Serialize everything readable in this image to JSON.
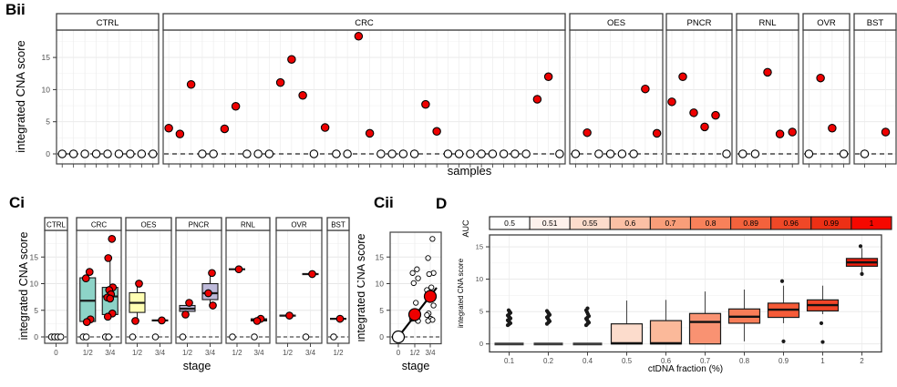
{
  "labels": {
    "bii": "Bii",
    "ci": "Ci",
    "cii": "Cii",
    "d": "D"
  },
  "colors": {
    "tumor_point": "#ee0000",
    "control_point_fill": "#ffffff",
    "point_stroke": "#000000",
    "panel_border": "#3f3f3f",
    "grid_major": "#e7e7e7",
    "grid_minor": "#f3f3f3",
    "zero_line": "#222222",
    "box_stroke": "#1a1a1a",
    "whisker": "#4a4a4a",
    "outlier": "#1a1a1a",
    "flat_line": "#3c3c3c"
  },
  "chart_data": [
    {
      "id": "bii",
      "type": "scatter",
      "ylabel": "integrated CNA score",
      "xlabel": "samples",
      "yticks": [
        0,
        5,
        10,
        15
      ],
      "ylim": [
        -1.6,
        19.5
      ],
      "zero_line": "dashed",
      "point_rule": "value 0 = open white circle (ctDNA negative), value > 0 = red filled circle (integrated CNA score)",
      "facets": [
        {
          "label": "CTRL",
          "values": [
            0,
            0,
            0,
            0,
            0,
            0,
            0,
            0,
            0
          ]
        },
        {
          "label": "CRC",
          "values": [
            4.0,
            3.1,
            10.8,
            0,
            0,
            3.9,
            7.4,
            0,
            0,
            0,
            11.1,
            14.7,
            9.1,
            0,
            4.1,
            0,
            0,
            18.3,
            3.2,
            0,
            0,
            0,
            0,
            7.7,
            3.5,
            0,
            0,
            0,
            0,
            0,
            0,
            0,
            0,
            8.5,
            12.0,
            0
          ]
        },
        {
          "label": "OES",
          "values": [
            0,
            3.3,
            0,
            0,
            0,
            0,
            10.1,
            3.2
          ]
        },
        {
          "label": "PNCR",
          "values": [
            8.1,
            12.0,
            6.4,
            4.2,
            6.0,
            0
          ]
        },
        {
          "label": "RNL",
          "values": [
            0,
            0,
            12.7,
            3.1,
            3.4
          ]
        },
        {
          "label": "OVR",
          "values": [
            0,
            11.8,
            4.0,
            0
          ]
        },
        {
          "label": "BST",
          "values": [
            0,
            3.4
          ]
        }
      ]
    },
    {
      "id": "ci",
      "type": "box",
      "ylabel": "integrated CNA score",
      "xlabel": "stage",
      "yticks": [
        0,
        5,
        10,
        15
      ],
      "facets": [
        {
          "label": "CTRL",
          "color": "#ffffff",
          "groups": [
            {
              "stage": "0",
              "points": [],
              "zeros": 4
            }
          ]
        },
        {
          "label": "CRC",
          "color": "#8dd3c7",
          "groups": [
            {
              "stage": "1/2",
              "box": {
                "q1": 2.9,
                "med": 6.8,
                "q3": 11.1,
                "lo": 2.9,
                "hi": 11.1
              },
              "points": [
                12.2,
                11.0,
                3.3,
                2.8
              ],
              "zeros": 2
            },
            {
              "stage": "3/4",
              "box": {
                "q1": 4.2,
                "med": 7.6,
                "q3": 9.3,
                "lo": 3.8,
                "hi": 14.8
              },
              "points": [
                18.4,
                14.8,
                9.3,
                8.8,
                8.0,
                7.4,
                7.2,
                4.4,
                3.8
              ],
              "zeros": 2
            }
          ]
        },
        {
          "label": "OES",
          "color": "#ffffb3",
          "groups": [
            {
              "stage": "1/2",
              "box": {
                "q1": 4.6,
                "med": 6.4,
                "q3": 8.3,
                "lo": 3.0,
                "hi": 10.0
              },
              "points": [
                10.0,
                3.0
              ],
              "zeros": 1
            },
            {
              "stage": "3/4",
              "box": {
                "med": 3.1
              },
              "points": [
                3.1
              ],
              "zeros": 1
            }
          ]
        },
        {
          "label": "PNCR",
          "color": "#bebada",
          "groups": [
            {
              "stage": "1/2",
              "box": {
                "q1": 4.8,
                "med": 5.3,
                "q3": 5.9,
                "lo": 4.2,
                "hi": 6.4
              },
              "points": [
                6.4,
                4.2
              ],
              "zeros": 1
            },
            {
              "stage": "3/4",
              "box": {
                "q1": 7.0,
                "med": 8.2,
                "q3": 10.0,
                "lo": 5.9,
                "hi": 12.0
              },
              "points": [
                12.0,
                8.2,
                5.9
              ],
              "zeros": 0
            }
          ]
        },
        {
          "label": "RNL",
          "color": "#fb8072",
          "groups": [
            {
              "stage": "1/2",
              "box": {
                "med": 12.7
              },
              "points": [
                12.7
              ],
              "zeros": 1
            },
            {
              "stage": "3/4",
              "box": {
                "q1": 3.0,
                "med": 3.2,
                "q3": 3.4,
                "lo": 3.0,
                "hi": 3.4
              },
              "points": [
                3.4,
                3.0
              ],
              "zeros": 1
            }
          ]
        },
        {
          "label": "OVR",
          "color": "#80b1d3",
          "groups": [
            {
              "stage": "1/2",
              "box": {
                "med": 4.0
              },
              "points": [
                4.0
              ],
              "zeros": 0
            },
            {
              "stage": "3/4",
              "box": {
                "med": 11.8
              },
              "points": [
                11.8
              ],
              "zeros": 1
            }
          ]
        },
        {
          "label": "BST",
          "color": "#fdb462",
          "groups": [
            {
              "stage": "1/2",
              "box": {
                "med": 3.4
              },
              "points": [
                3.4
              ],
              "zeros": 1
            }
          ]
        }
      ]
    },
    {
      "id": "cii",
      "type": "scatter",
      "ylabel": "integrated CNA score",
      "xlabel": "stage",
      "yticks": [
        0,
        5,
        10,
        15
      ],
      "categories": [
        "0",
        "1/2",
        "3/4"
      ],
      "open_points": {
        "0": [
          0,
          0
        ],
        "1/2": [
          12.7,
          12.0,
          11.0,
          10.1,
          6.4,
          4.3,
          4.2,
          4.0,
          3.4,
          3.3,
          3.0
        ],
        "3/4": [
          18.4,
          14.8,
          12.0,
          11.8,
          9.3,
          8.8,
          8.2,
          8.0,
          7.7,
          7.4,
          5.9,
          4.4,
          4.1,
          3.4,
          3.2,
          3.0
        ]
      },
      "median_points": [
        {
          "stage": "0",
          "value": 0,
          "fill": "#ffffff"
        },
        {
          "stage": "1/2",
          "value": 4.2,
          "fill": "#ee0000"
        },
        {
          "stage": "3/4",
          "value": 7.6,
          "fill": "#ee0000"
        }
      ],
      "trend_line": {
        "from_value": -0.9,
        "to_value": 9.0
      }
    },
    {
      "id": "d",
      "type": "box",
      "ylabel": "integrated CNA score",
      "xlabel": "ctDNA fraction (%)",
      "yticks": [
        0,
        5,
        10,
        15
      ],
      "legend": {
        "label": "AUC",
        "values": [
          "0.5",
          "0.51",
          "0.55",
          "0.6",
          "0.7",
          "0.8",
          "0.89",
          "0.96",
          "0.99",
          "1"
        ],
        "colors": [
          "#ffffff",
          "#fef1ec",
          "#fcdccc",
          "#fbc0a5",
          "#f99e79",
          "#f8815a",
          "#f4623c",
          "#f04827",
          "#ed3015",
          "#f50800"
        ]
      },
      "groups": [
        {
          "x": "0.1",
          "flat": true,
          "outliers": [
            2.9,
            3.05,
            3.2,
            3.35,
            3.5,
            3.65,
            3.8,
            3.95,
            4.1,
            4.25,
            4.4,
            4.6,
            4.8,
            5.0,
            5.2
          ]
        },
        {
          "x": "0.2",
          "flat": true,
          "outliers": [
            3.1,
            3.3,
            3.5,
            3.7,
            3.9,
            4.1,
            4.3,
            4.5,
            4.7,
            4.9,
            5.1
          ]
        },
        {
          "x": "0.4",
          "flat": true,
          "outliers": [
            2.9,
            3.1,
            3.3,
            3.5,
            3.7,
            3.9,
            4.1,
            4.3,
            4.6,
            4.9,
            5.2,
            5.5
          ]
        },
        {
          "x": "0.5",
          "color": "#fcdccc",
          "box": {
            "q1": 0,
            "med": 0.1,
            "q3": 3.1,
            "lo": 0,
            "hi": 6.7
          }
        },
        {
          "x": "0.6",
          "color": "#fbb99a",
          "box": {
            "q1": 0,
            "med": 0.1,
            "q3": 3.6,
            "lo": 0,
            "hi": 6.8
          }
        },
        {
          "x": "0.7",
          "color": "#f99272",
          "box": {
            "q1": 0,
            "med": 3.4,
            "q3": 4.7,
            "lo": 0,
            "hi": 8.1
          }
        },
        {
          "x": "0.8",
          "color": "#f87d58",
          "box": {
            "q1": 3.2,
            "med": 4.2,
            "q3": 5.4,
            "lo": 0.4,
            "hi": 8.4
          }
        },
        {
          "x": "0.9",
          "color": "#f55b38",
          "box": {
            "q1": 4.1,
            "med": 5.3,
            "q3": 6.3,
            "lo": 3.2,
            "hi": 9.0
          },
          "outliers": [
            9.7,
            0.4
          ]
        },
        {
          "x": "1",
          "color": "#f14527",
          "box": {
            "q1": 5.1,
            "med": 6.0,
            "q3": 6.8,
            "lo": 4.6,
            "hi": 9.0
          },
          "outliers": [
            3.2,
            0.3
          ]
        },
        {
          "x": "2",
          "color": "#ee1c0c",
          "box": {
            "q1": 12.0,
            "med": 12.6,
            "q3": 13.2,
            "lo": 11.0,
            "hi": 14.8
          },
          "outliers": [
            15.1,
            10.8
          ]
        }
      ]
    }
  ]
}
